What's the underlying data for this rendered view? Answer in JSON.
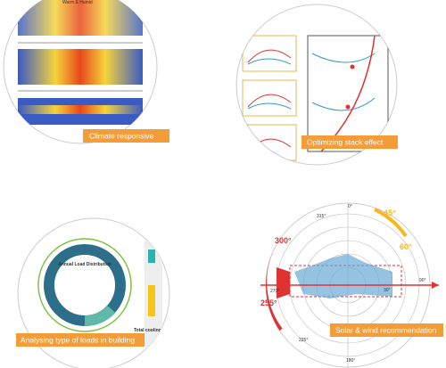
{
  "tiles": [
    {
      "label": "Climate responsive",
      "texts": [
        "Warm & Humid"
      ]
    },
    {
      "label": "Optimizing stack effect",
      "texts": []
    },
    {
      "label": "Analysing type of loads in building",
      "texts": [
        "Annual Load Distribution",
        "Total cooling lo"
      ]
    },
    {
      "label": "Solar & wind recommendation",
      "texts": [
        "0°",
        "315°",
        "300°",
        "270°",
        "255°",
        "225°",
        "180°",
        "90°",
        "60°",
        "45°",
        "30°"
      ]
    }
  ]
}
